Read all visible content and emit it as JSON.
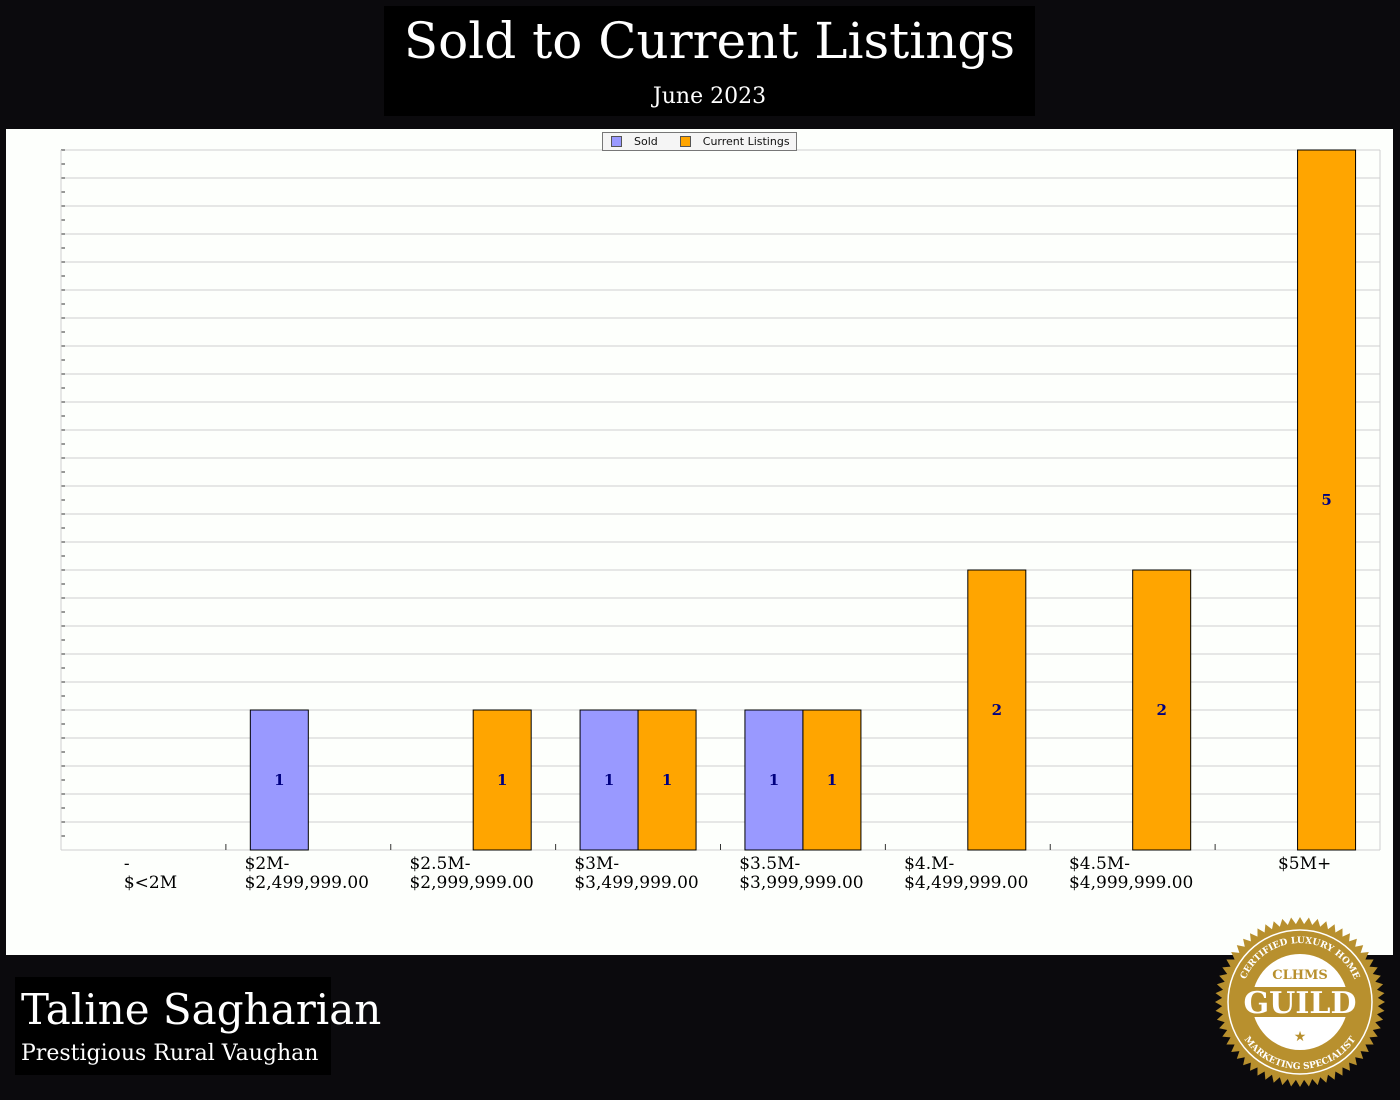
{
  "header": {
    "title": "Sold to Current Listings",
    "subtitle": "June 2023"
  },
  "footer": {
    "agent_name": "Taline Sagharian",
    "office": "Prestigious Rural Vaughan"
  },
  "badge": {
    "top_text": "CERTIFIED LUXURY HOME",
    "brand": "CLHMS",
    "word": "GUILD",
    "bottom_text": "MARKETING SPECIALIST",
    "color": "#b8902e"
  },
  "chart_data": {
    "type": "bar",
    "title": "Sold to Current Listings",
    "subtitle": "June 2023",
    "categories": [
      [
        "-",
        "$<2M"
      ],
      [
        "$2M-",
        "$2,499,999.00"
      ],
      [
        "$2.5M-",
        "$2,999,999.00"
      ],
      [
        "$3M-",
        "$3,499,999.00"
      ],
      [
        "$3.5M-",
        "$3,999,999.00"
      ],
      [
        "$4.M-",
        "$4,499,999.00"
      ],
      [
        "$4.5M-",
        "$4,999,999.00"
      ],
      [
        "$5M+",
        ""
      ]
    ],
    "series": [
      {
        "name": "Sold",
        "color": "#9999ff",
        "values": [
          0,
          1,
          0,
          1,
          1,
          0,
          0,
          0
        ]
      },
      {
        "name": "Current Listings",
        "color": "#ffa500",
        "values": [
          0,
          0,
          1,
          1,
          1,
          2,
          2,
          5
        ]
      }
    ],
    "ylim": [
      0,
      5
    ],
    "y_tick_labels": false,
    "grid": true,
    "legend": "top-center",
    "data_label_color": "#000080"
  }
}
